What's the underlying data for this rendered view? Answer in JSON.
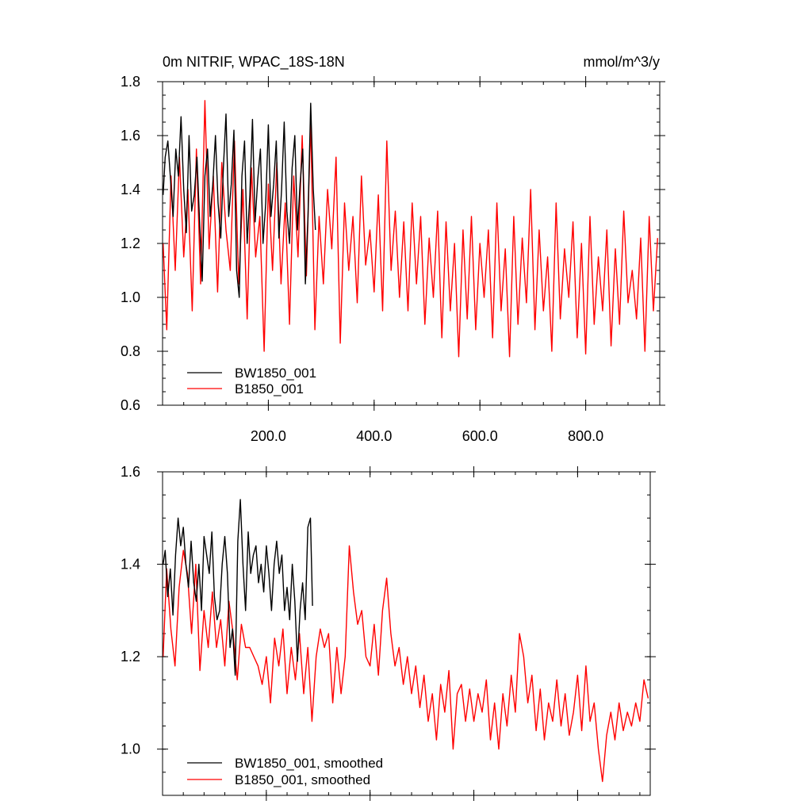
{
  "chart_data": [
    {
      "type": "line",
      "title": "0m NITRIF, WPAC_18S-18N",
      "units": "mmol/m^3/y",
      "xlim": [
        0,
        940
      ],
      "ylim": [
        0.6,
        1.8
      ],
      "xticks": [
        200,
        400,
        600,
        800
      ],
      "xtick_labels": [
        "200.0",
        "400.0",
        "600.0",
        "800.0"
      ],
      "yticks": [
        0.6,
        0.8,
        1.0,
        1.2,
        1.4,
        1.6,
        1.8
      ],
      "ytick_labels": [
        "0.6",
        "0.8",
        "1.0",
        "1.2",
        "1.4",
        "1.6",
        "1.8"
      ],
      "legend_position": "bottom-left",
      "series": [
        {
          "name": "BW1850_001",
          "color": "#000000",
          "x": [
            1,
            5,
            10,
            15,
            20,
            25,
            30,
            35,
            40,
            45,
            50,
            55,
            60,
            65,
            70,
            75,
            80,
            85,
            90,
            95,
            100,
            105,
            110,
            115,
            120,
            125,
            130,
            135,
            140,
            145,
            150,
            155,
            160,
            165,
            170,
            175,
            180,
            185,
            190,
            195,
            200,
            205,
            210,
            215,
            220,
            225,
            230,
            235,
            240,
            245,
            250,
            255,
            260,
            265,
            270,
            275,
            280,
            285,
            289
          ],
          "values": [
            1.38,
            1.52,
            1.58,
            1.44,
            1.3,
            1.55,
            1.45,
            1.67,
            1.4,
            1.24,
            1.6,
            1.32,
            1.38,
            1.52,
            1.28,
            1.06,
            1.45,
            1.55,
            1.3,
            1.42,
            1.6,
            1.35,
            1.22,
            1.48,
            1.68,
            1.3,
            1.42,
            1.62,
            1.1,
            1.0,
            1.45,
            1.58,
            1.2,
            1.38,
            1.66,
            1.28,
            1.44,
            1.55,
            1.2,
            1.35,
            1.64,
            1.3,
            1.42,
            1.58,
            1.22,
            1.4,
            1.65,
            1.32,
            1.2,
            1.48,
            1.6,
            1.25,
            1.42,
            1.55,
            1.05,
            1.3,
            1.72,
            1.4,
            1.25
          ]
        },
        {
          "name": "B1850_001",
          "color": "#ff0000",
          "x": [
            1,
            8,
            16,
            24,
            32,
            40,
            48,
            56,
            64,
            72,
            80,
            88,
            96,
            104,
            112,
            120,
            128,
            136,
            144,
            152,
            160,
            168,
            176,
            184,
            192,
            200,
            208,
            216,
            224,
            232,
            240,
            248,
            256,
            264,
            272,
            280,
            288,
            296,
            304,
            312,
            320,
            328,
            336,
            344,
            352,
            360,
            368,
            376,
            384,
            392,
            400,
            408,
            416,
            424,
            432,
            440,
            448,
            456,
            464,
            472,
            480,
            488,
            496,
            504,
            512,
            520,
            528,
            536,
            544,
            552,
            560,
            568,
            576,
            584,
            592,
            600,
            608,
            616,
            624,
            632,
            640,
            648,
            656,
            664,
            672,
            680,
            688,
            696,
            704,
            712,
            720,
            728,
            736,
            744,
            752,
            760,
            768,
            776,
            784,
            792,
            800,
            808,
            816,
            824,
            832,
            840,
            848,
            856,
            864,
            872,
            880,
            888,
            896,
            904,
            912,
            920,
            928,
            936
          ],
          "values": [
            1.2,
            0.88,
            1.45,
            1.1,
            1.52,
            1.15,
            1.4,
            0.95,
            1.55,
            1.05,
            1.73,
            1.18,
            1.45,
            1.02,
            1.5,
            1.25,
            1.1,
            1.58,
            1.05,
            1.4,
            0.92,
            1.48,
            1.15,
            1.3,
            0.8,
            1.42,
            1.1,
            1.5,
            1.05,
            1.35,
            0.9,
            1.45,
            1.15,
            1.6,
            1.08,
            1.65,
            0.88,
            1.3,
            1.05,
            1.4,
            1.18,
            1.52,
            0.83,
            1.35,
            1.1,
            1.3,
            0.98,
            1.45,
            1.12,
            1.25,
            1.02,
            1.38,
            0.95,
            1.58,
            1.1,
            1.32,
            1.0,
            1.28,
            0.95,
            1.35,
            1.05,
            1.3,
            0.9,
            1.22,
            1.0,
            1.32,
            0.85,
            1.28,
            0.95,
            1.2,
            0.78,
            1.25,
            0.92,
            1.3,
            0.88,
            1.2,
            1.0,
            1.25,
            0.85,
            1.35,
            0.95,
            1.18,
            0.78,
            1.3,
            0.9,
            1.22,
            0.98,
            1.4,
            0.88,
            1.25,
            0.95,
            1.15,
            0.8,
            1.35,
            0.92,
            1.18,
            1.0,
            1.28,
            0.85,
            1.2,
            0.79,
            1.3,
            0.9,
            1.15,
            0.95,
            1.25,
            0.82,
            1.18,
            0.9,
            1.32,
            0.98,
            1.1,
            0.92,
            1.22,
            0.8,
            1.3,
            0.95,
            1.22
          ]
        }
      ]
    },
    {
      "type": "line",
      "xlim": [
        0,
        940
      ],
      "ylim": [
        0.9,
        1.6
      ],
      "xticks": [
        200,
        400,
        600,
        800
      ],
      "yticks": [
        1.0,
        1.2,
        1.4,
        1.6
      ],
      "ytick_labels": [
        "1.0",
        "1.2",
        "1.4",
        "1.6"
      ],
      "legend_position": "bottom-left",
      "series": [
        {
          "name": "BW1850_001, smoothed",
          "color": "#000000",
          "x": [
            1,
            5,
            10,
            15,
            20,
            25,
            30,
            35,
            40,
            45,
            50,
            55,
            60,
            65,
            70,
            75,
            80,
            85,
            90,
            95,
            100,
            105,
            110,
            115,
            120,
            125,
            130,
            135,
            140,
            145,
            150,
            155,
            160,
            165,
            170,
            175,
            180,
            185,
            190,
            195,
            200,
            205,
            210,
            215,
            220,
            225,
            230,
            235,
            240,
            245,
            250,
            255,
            260,
            265,
            270,
            275,
            280,
            285,
            289
          ],
          "values": [
            1.4,
            1.43,
            1.33,
            1.39,
            1.29,
            1.42,
            1.5,
            1.44,
            1.48,
            1.4,
            1.35,
            1.45,
            1.36,
            1.32,
            1.4,
            1.3,
            1.46,
            1.42,
            1.38,
            1.47,
            1.33,
            1.28,
            1.3,
            1.4,
            1.46,
            1.38,
            1.22,
            1.26,
            1.16,
            1.45,
            1.54,
            1.4,
            1.3,
            1.47,
            1.38,
            1.42,
            1.44,
            1.36,
            1.4,
            1.34,
            1.44,
            1.38,
            1.3,
            1.4,
            1.45,
            1.38,
            1.42,
            1.3,
            1.35,
            1.28,
            1.4,
            1.32,
            1.19,
            1.3,
            1.36,
            1.28,
            1.48,
            1.5,
            1.31
          ]
        },
        {
          "name": "B1850_001, smoothed",
          "color": "#ff0000",
          "x": [
            1,
            8,
            16,
            24,
            32,
            40,
            48,
            56,
            64,
            72,
            80,
            88,
            96,
            104,
            112,
            120,
            128,
            136,
            144,
            152,
            160,
            168,
            176,
            184,
            192,
            200,
            208,
            216,
            224,
            232,
            240,
            248,
            256,
            264,
            272,
            280,
            288,
            296,
            304,
            312,
            320,
            328,
            336,
            344,
            352,
            360,
            368,
            376,
            384,
            392,
            400,
            408,
            416,
            424,
            432,
            440,
            448,
            456,
            464,
            472,
            480,
            488,
            496,
            504,
            512,
            520,
            528,
            536,
            544,
            552,
            560,
            568,
            576,
            584,
            592,
            600,
            608,
            616,
            624,
            632,
            640,
            648,
            656,
            664,
            672,
            680,
            688,
            696,
            704,
            712,
            720,
            728,
            736,
            744,
            752,
            760,
            768,
            776,
            784,
            792,
            800,
            808,
            816,
            824,
            832,
            840,
            848,
            856,
            864,
            872,
            880,
            888,
            896,
            904,
            912,
            920,
            928,
            936
          ],
          "values": [
            1.2,
            1.39,
            1.26,
            1.18,
            1.35,
            1.43,
            1.38,
            1.25,
            1.4,
            1.17,
            1.3,
            1.22,
            1.34,
            1.22,
            1.28,
            1.18,
            1.32,
            1.25,
            1.15,
            1.27,
            1.22,
            1.22,
            1.2,
            1.18,
            1.14,
            1.2,
            1.1,
            1.24,
            1.18,
            1.26,
            1.12,
            1.22,
            1.15,
            1.25,
            1.12,
            1.22,
            1.06,
            1.2,
            1.26,
            1.22,
            1.25,
            1.1,
            1.22,
            1.12,
            1.2,
            1.44,
            1.34,
            1.27,
            1.3,
            1.2,
            1.18,
            1.27,
            1.16,
            1.3,
            1.37,
            1.25,
            1.18,
            1.22,
            1.14,
            1.2,
            1.12,
            1.18,
            1.09,
            1.16,
            1.06,
            1.12,
            1.02,
            1.14,
            1.08,
            1.17,
            1.0,
            1.12,
            1.14,
            1.06,
            1.13,
            1.06,
            1.12,
            1.08,
            1.15,
            1.02,
            1.1,
            1.0,
            1.12,
            1.05,
            1.16,
            1.08,
            1.25,
            1.2,
            1.1,
            1.16,
            1.04,
            1.13,
            1.02,
            1.1,
            1.06,
            1.15,
            1.05,
            1.12,
            1.03,
            1.08,
            1.16,
            1.04,
            1.18,
            1.06,
            1.1,
            1.0,
            0.93,
            1.03,
            1.08,
            1.02,
            1.1,
            1.04,
            1.08,
            1.05,
            1.1,
            1.06,
            1.15,
            1.11
          ]
        }
      ]
    }
  ]
}
